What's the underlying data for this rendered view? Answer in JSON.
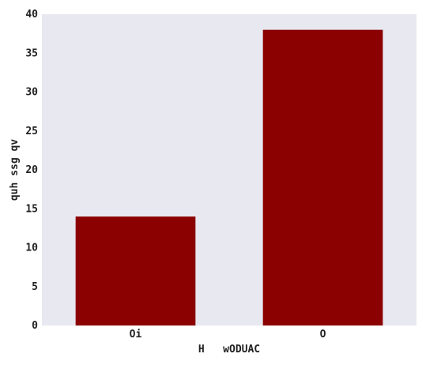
{
  "chart_data": {
    "type": "bar",
    "categories": [
      "Oi",
      "O"
    ],
    "values": [
      14,
      38
    ],
    "title": "",
    "xlabel": "H   wODUAC",
    "ylabel": "quh ssg qv",
    "ylim": [
      0,
      40
    ],
    "yticks": [
      0,
      5,
      10,
      15,
      20,
      25,
      30,
      35,
      40
    ],
    "grid": false,
    "colors": {
      "bar": "#8b0000",
      "plot_background": "#e8e8f1"
    }
  }
}
